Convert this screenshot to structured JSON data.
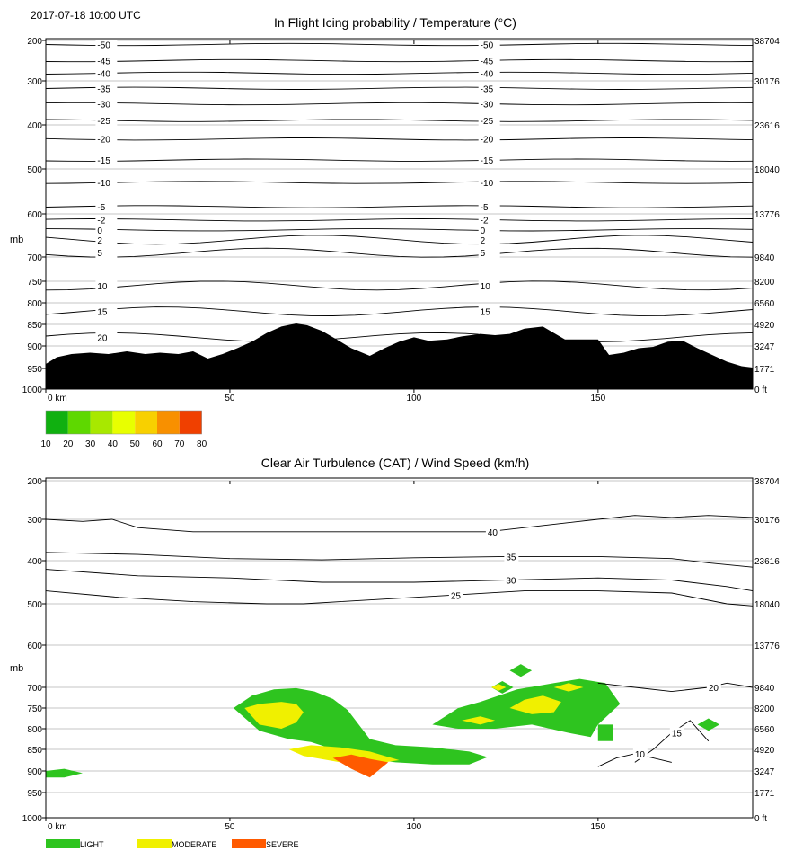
{
  "timestamp": "2017-07-18 10:00 UTC",
  "colors": {
    "terrain": "#000000",
    "grid": "#b0b0b0",
    "contour": "#000000",
    "light": "#2ec41f",
    "moderate": "#f0f000",
    "severe": "#ff5a00"
  },
  "icing_legend": {
    "colors": [
      "#10b010",
      "#5ed800",
      "#a8e800",
      "#e8ff00",
      "#f8d000",
      "#f89000",
      "#f04000"
    ],
    "labels": [
      "10",
      "20",
      "30",
      "40",
      "50",
      "60",
      "70",
      "80"
    ]
  },
  "cat_legend": [
    "LIGHT",
    "MODERATE",
    "SEVERE"
  ],
  "chart_data": [
    {
      "type": "line",
      "title": "In Flight Icing probability / Temperature (°C)",
      "ylabel": "mb",
      "x_ticks": [
        "0 km",
        "50",
        "100",
        "150"
      ],
      "xlim": [
        0,
        192
      ],
      "pressure_ticks": [
        "200",
        "300",
        "400",
        "500",
        "600",
        "700",
        "750",
        "800",
        "850",
        "900",
        "950",
        "1000"
      ],
      "height_ticks": [
        "38704",
        "30176",
        "23616",
        "18040",
        "13776",
        "9840",
        "8200",
        "6560",
        "4920",
        "3247",
        "1771",
        "0 ft"
      ],
      "grid": true,
      "terrain": {
        "x": [
          0,
          3,
          7,
          12,
          17,
          22,
          27,
          31,
          36,
          40,
          44,
          48,
          52,
          56,
          60,
          64,
          68,
          71,
          75,
          79,
          83,
          88,
          92,
          96,
          100,
          104,
          109,
          113,
          118,
          122,
          126,
          130,
          135,
          138,
          141,
          145,
          150,
          153,
          157,
          161,
          165,
          169,
          173,
          177,
          181,
          185,
          189,
          192
        ],
        "p": [
          940,
          925,
          918,
          915,
          918,
          912,
          918,
          915,
          918,
          912,
          928,
          918,
          905,
          890,
          870,
          855,
          848,
          852,
          865,
          885,
          905,
          922,
          905,
          890,
          880,
          888,
          885,
          878,
          872,
          875,
          872,
          860,
          855,
          870,
          885,
          885,
          885,
          920,
          915,
          905,
          902,
          890,
          888,
          905,
          920,
          935,
          945,
          948
        ]
      },
      "contours": [
        {
          "label": "-50",
          "p": 210
        },
        {
          "label": "-45",
          "p": 250
        },
        {
          "label": "-40",
          "p": 281
        },
        {
          "label": "-35",
          "p": 317
        },
        {
          "label": "-30",
          "p": 352
        },
        {
          "label": "-25",
          "p": 390
        },
        {
          "label": "-20",
          "p": 432
        },
        {
          "label": "-15",
          "p": 480
        },
        {
          "label": "-10",
          "p": 530
        },
        {
          "label": "-5",
          "p": 584
        },
        {
          "label": "-2",
          "p": 614
        },
        {
          "label": "0",
          "p": 637
        },
        {
          "label": "2",
          "p": 660
        },
        {
          "label": "5",
          "p": 690
        },
        {
          "label": "10",
          "p": 760
        },
        {
          "label": "15",
          "p": 820
        },
        {
          "label": "20",
          "p": 880
        }
      ]
    },
    {
      "type": "line",
      "title": "Clear Air Turbulence (CAT) / Wind Speed (km/h)",
      "ylabel": "mb",
      "x_ticks": [
        "0 km",
        "50",
        "100",
        "150"
      ],
      "xlim": [
        0,
        192
      ],
      "pressure_ticks": [
        "200",
        "300",
        "400",
        "500",
        "600",
        "700",
        "750",
        "800",
        "850",
        "900",
        "950",
        "1000"
      ],
      "height_ticks": [
        "38704",
        "30176",
        "23616",
        "18040",
        "13776",
        "9840",
        "8200",
        "6560",
        "4920",
        "3247",
        "1771",
        "0 ft"
      ],
      "grid": true,
      "series": [
        {
          "label": "40",
          "x": [
            0,
            10,
            18,
            25,
            40,
            60,
            80,
            100,
            120,
            130,
            140,
            150,
            160,
            170,
            180,
            192
          ],
          "p": [
            300,
            305,
            300,
            320,
            330,
            330,
            330,
            330,
            330,
            320,
            310,
            300,
            290,
            295,
            290,
            295
          ]
        },
        {
          "label": "35",
          "x": [
            0,
            25,
            50,
            75,
            100,
            125,
            150,
            170,
            180,
            192
          ],
          "p": [
            380,
            385,
            395,
            398,
            393,
            390,
            390,
            395,
            405,
            415
          ]
        },
        {
          "label": "30",
          "x": [
            0,
            25,
            50,
            75,
            100,
            125,
            150,
            170,
            185,
            192
          ],
          "p": [
            420,
            435,
            440,
            450,
            450,
            445,
            440,
            445,
            460,
            470
          ]
        },
        {
          "label": "25",
          "x": [
            0,
            20,
            40,
            60,
            70,
            80,
            110,
            130,
            150,
            170,
            185,
            192
          ],
          "p": [
            470,
            485,
            495,
            500,
            500,
            495,
            480,
            470,
            470,
            475,
            500,
            505
          ]
        },
        {
          "label": "20",
          "x": [
            150,
            160,
            170,
            180,
            185,
            192
          ],
          "p": [
            690,
            700,
            710,
            700,
            690,
            700
          ]
        },
        {
          "label": "15",
          "x": [
            160,
            165,
            170,
            175,
            180
          ],
          "p": [
            880,
            850,
            810,
            780,
            830
          ]
        },
        {
          "label": "10",
          "x": [
            150,
            155,
            160,
            165,
            170
          ],
          "p": [
            890,
            870,
            860,
            870,
            880
          ]
        }
      ],
      "cat": {
        "light": [
          {
            "x": [
              51,
              56,
              62,
              68,
              73,
              78,
              82,
              88,
              95,
              105,
              115,
              120,
              115,
              105,
              95,
              86,
              79,
              72,
              66,
              58,
              51
            ],
            "p": [
              750,
              720,
              705,
              702,
              710,
              728,
              755,
              825,
              840,
              845,
              855,
              868,
              885,
              885,
              880,
              870,
              852,
              832,
              825,
              805,
              750
            ]
          },
          {
            "x": [
              105,
              112,
              118,
              128,
              138,
              145,
              152,
              156,
              150,
              148,
              142,
              132,
              122,
              112,
              105
            ],
            "p": [
              790,
              750,
              735,
              705,
              690,
              680,
              690,
              740,
              790,
              820,
              810,
              790,
              800,
              800,
              790
            ]
          },
          {
            "x": [
              150,
              154,
              154,
              150
            ],
            "p": [
              790,
              790,
              830,
              830
            ]
          },
          {
            "x": [
              126,
              129,
              132,
              129
            ],
            "p": [
              660,
              645,
              660,
              675
            ]
          },
          {
            "x": [
              121,
              124,
              127,
              124
            ],
            "p": [
              700,
              685,
              700,
              715
            ]
          },
          {
            "x": [
              177,
              180,
              183,
              180
            ],
            "p": [
              790,
              775,
              790,
              805
            ]
          },
          {
            "x": [
              0,
              5,
              10,
              5,
              0
            ],
            "p": [
              900,
              895,
              905,
              915,
              915
            ]
          }
        ],
        "moderate": [
          {
            "x": [
              54,
              58,
              64,
              68,
              70,
              68,
              64,
              58,
              54
            ],
            "p": [
              750,
              740,
              735,
              740,
              760,
              785,
              800,
              790,
              750
            ]
          },
          {
            "x": [
              66,
              72,
              80,
              88,
              96,
              88,
              80,
              70,
              66
            ],
            "p": [
              850,
              840,
              845,
              855,
              875,
              885,
              880,
              865,
              850
            ]
          },
          {
            "x": [
              130,
              135,
              140,
              138,
              132,
              126,
              130
            ],
            "p": [
              730,
              720,
              735,
              760,
              765,
              750,
              730
            ]
          },
          {
            "x": [
              138,
              142,
              146,
              142
            ],
            "p": [
              700,
              690,
              700,
              710
            ]
          },
          {
            "x": [
              113,
              118,
              122,
              118
            ],
            "p": [
              780,
              770,
              780,
              790
            ]
          },
          {
            "x": [
              121,
              123,
              125,
              123
            ],
            "p": [
              700,
              692,
              700,
              708
            ]
          }
        ],
        "severe": [
          {
            "x": [
              78,
              83,
              88,
              93,
              88,
              83,
              78
            ],
            "p": [
              870,
              862,
              872,
              880,
              915,
              895,
              870
            ]
          }
        ]
      }
    }
  ]
}
